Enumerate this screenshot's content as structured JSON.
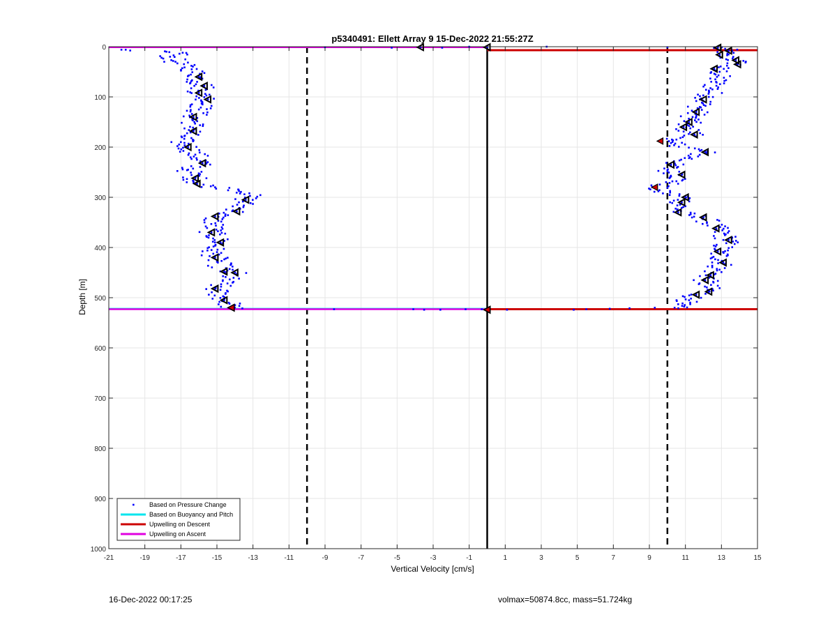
{
  "footer": {
    "timestamp": "16-Dec-2022 00:17:25",
    "params": "volmax=50874.8cc, mass=51.724kg"
  },
  "chart_data": {
    "type": "scatter",
    "title": "p5340491: Ellett Array 9 15-Dec-2022 21:55:27Z",
    "xlabel": "Vertical Velocity [cm/s]",
    "ylabel": "Depth [m]",
    "xlim": [
      -21,
      15
    ],
    "ylim": [
      0,
      1000
    ],
    "y_reversed": true,
    "grid": true,
    "xticks": [
      -21,
      -19,
      -17,
      -15,
      -13,
      -11,
      -9,
      -7,
      -5,
      -3,
      -1,
      1,
      3,
      5,
      7,
      9,
      11,
      13,
      15
    ],
    "yticks": [
      0,
      100,
      200,
      300,
      400,
      500,
      600,
      700,
      800,
      900,
      1000
    ],
    "legend_position": "bottom-left",
    "legend": [
      {
        "label": "Based on Pressure Change",
        "style": "dot",
        "color": "#0000ff"
      },
      {
        "label": "Based on Buoyancy and Pitch",
        "style": "line",
        "color": "#00e5ee"
      },
      {
        "label": "Upwelling on Descent",
        "style": "line",
        "color": "#cc0000"
      },
      {
        "label": "Upwelling on Ascent",
        "style": "line",
        "color": "#e000e0"
      }
    ],
    "reference_lines": [
      {
        "x": -10,
        "style": "dashed",
        "color": "#000000"
      },
      {
        "x": 10,
        "style": "dashed",
        "color": "#000000"
      },
      {
        "x": 0,
        "style": "solid",
        "color": "#000000"
      }
    ],
    "upwelling_descent": [
      {
        "x": [
          0,
          15
        ],
        "y": 7
      },
      {
        "x": [
          0,
          15
        ],
        "y": 523
      }
    ],
    "upwelling_ascent": [
      {
        "x": [
          -21,
          0
        ],
        "y": 1
      },
      {
        "x": [
          -21,
          0
        ],
        "y": 523
      }
    ],
    "buoyancy_lines": [
      {
        "x": [
          -21,
          0
        ],
        "y": 522
      }
    ],
    "descent_profile": [
      [
        12.8,
        2
      ],
      [
        13.4,
        8
      ],
      [
        12.9,
        16
      ],
      [
        13.8,
        27
      ],
      [
        13.9,
        35
      ],
      [
        12.6,
        44
      ],
      [
        12.9,
        50
      ],
      [
        12.7,
        70
      ],
      [
        12.5,
        85
      ],
      [
        12.3,
        100
      ],
      [
        12.0,
        108
      ],
      [
        11.8,
        120
      ],
      [
        11.6,
        130
      ],
      [
        11.4,
        140
      ],
      [
        11.2,
        150
      ],
      [
        10.9,
        160
      ],
      [
        11.5,
        175
      ],
      [
        10.5,
        185
      ],
      [
        9.6,
        188
      ],
      [
        10.2,
        192
      ],
      [
        12.1,
        210
      ],
      [
        11.2,
        222
      ],
      [
        10.2,
        235
      ],
      [
        10.0,
        248
      ],
      [
        10.8,
        255
      ],
      [
        10.5,
        268
      ],
      [
        9.3,
        280
      ],
      [
        9.5,
        288
      ],
      [
        11.0,
        300
      ],
      [
        10.8,
        310
      ],
      [
        10.6,
        330
      ],
      [
        12.0,
        340
      ],
      [
        12.7,
        362
      ],
      [
        13.4,
        385
      ],
      [
        12.8,
        408
      ],
      [
        13.1,
        430
      ],
      [
        12.4,
        455
      ],
      [
        12.1,
        465
      ],
      [
        12.3,
        488
      ],
      [
        11.6,
        494
      ],
      [
        11.2,
        505
      ],
      [
        10.6,
        513
      ],
      [
        10.4,
        520
      ]
    ],
    "ascent_profile": [
      [
        -14.2,
        520
      ],
      [
        -14.3,
        512
      ],
      [
        -14.6,
        505
      ],
      [
        -15.1,
        482
      ],
      [
        -14.6,
        448
      ],
      [
        -14.0,
        450
      ],
      [
        -15.1,
        420
      ],
      [
        -15.3,
        405
      ],
      [
        -14.8,
        390
      ],
      [
        -15.3,
        370
      ],
      [
        -15.1,
        338
      ],
      [
        -13.9,
        328
      ],
      [
        -13.4,
        305
      ],
      [
        -13.2,
        292
      ],
      [
        -13.8,
        285
      ],
      [
        -15.1,
        280
      ],
      [
        -16.1,
        273
      ],
      [
        -16.2,
        262
      ],
      [
        -16.6,
        245
      ],
      [
        -15.8,
        232
      ],
      [
        -16.2,
        215
      ],
      [
        -16.6,
        200
      ],
      [
        -17.0,
        190
      ],
      [
        -16.8,
        178
      ],
      [
        -16.3,
        168
      ],
      [
        -16.3,
        140
      ],
      [
        -16.0,
        125
      ],
      [
        -15.8,
        115
      ],
      [
        -15.5,
        105
      ],
      [
        -16.0,
        92
      ],
      [
        -15.7,
        78
      ],
      [
        -16.1,
        70
      ],
      [
        -16.0,
        60
      ],
      [
        -16.4,
        45
      ],
      [
        -17.3,
        30
      ],
      [
        -17.6,
        20
      ],
      [
        -16.9,
        12
      ],
      [
        -17.8,
        10
      ],
      [
        -20.3,
        6
      ]
    ],
    "surface_scatter": [
      [
        -9.0,
        1
      ],
      [
        -5.3,
        2
      ],
      [
        -3.7,
        1
      ],
      [
        -2.5,
        2
      ],
      [
        -1.0,
        0
      ],
      [
        0.0,
        1
      ],
      [
        3.3,
        0
      ],
      [
        10.0,
        1
      ],
      [
        -8.5,
        523
      ],
      [
        -4.1,
        523
      ],
      [
        -3.5,
        524
      ],
      [
        -2.6,
        524
      ],
      [
        -1.2,
        523
      ],
      [
        -0.3,
        523
      ],
      [
        0.0,
        524
      ],
      [
        1.1,
        524
      ],
      [
        4.8,
        524
      ],
      [
        5.5,
        523
      ],
      [
        6.8,
        522
      ],
      [
        7.9,
        521
      ],
      [
        9.3,
        520
      ]
    ],
    "triangle_markers": [
      [
        12.8,
        2
      ],
      [
        13.4,
        8
      ],
      [
        12.9,
        16
      ],
      [
        13.8,
        27
      ],
      [
        13.9,
        35
      ],
      [
        12.6,
        44
      ],
      [
        12.0,
        105
      ],
      [
        11.6,
        130
      ],
      [
        11.2,
        150
      ],
      [
        10.9,
        160
      ],
      [
        11.5,
        175
      ],
      [
        12.1,
        210
      ],
      [
        10.2,
        235
      ],
      [
        10.8,
        255
      ],
      [
        11.0,
        300
      ],
      [
        10.8,
        310
      ],
      [
        10.6,
        330
      ],
      [
        12.0,
        340
      ],
      [
        12.7,
        362
      ],
      [
        13.4,
        385
      ],
      [
        12.8,
        408
      ],
      [
        13.1,
        430
      ],
      [
        12.4,
        455
      ],
      [
        12.1,
        465
      ],
      [
        12.3,
        488
      ],
      [
        11.6,
        494
      ],
      [
        -16.0,
        60
      ],
      [
        -15.7,
        78
      ],
      [
        -16.0,
        92
      ],
      [
        -15.5,
        105
      ],
      [
        -16.3,
        140
      ],
      [
        -16.3,
        168
      ],
      [
        -16.6,
        200
      ],
      [
        -15.8,
        232
      ],
      [
        -16.2,
        262
      ],
      [
        -16.1,
        273
      ],
      [
        -13.4,
        305
      ],
      [
        -13.9,
        328
      ],
      [
        -15.1,
        338
      ],
      [
        -15.3,
        370
      ],
      [
        -14.8,
        390
      ],
      [
        -15.1,
        420
      ],
      [
        -14.6,
        448
      ],
      [
        -14.0,
        450
      ],
      [
        -15.1,
        482
      ],
      [
        -14.6,
        505
      ],
      [
        -14.2,
        520
      ],
      [
        -3.7,
        1
      ],
      [
        0.0,
        1
      ],
      [
        0.0,
        524
      ]
    ],
    "red_markers": [
      [
        9.6,
        188
      ],
      [
        9.3,
        280
      ],
      [
        -14.2,
        520
      ],
      [
        0.0,
        524
      ]
    ]
  }
}
